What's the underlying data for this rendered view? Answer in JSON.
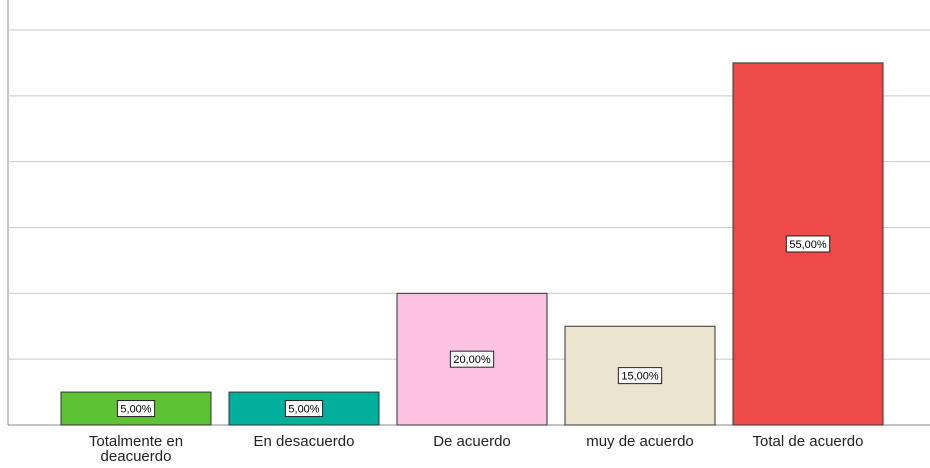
{
  "chart_data": {
    "type": "bar",
    "categories": [
      "Totalmente en deacuerdo",
      "En desacuerdo",
      "De acuerdo",
      "muy de acuerdo",
      "Total de acuerdo"
    ],
    "values": [
      5,
      5,
      20,
      15,
      55
    ],
    "value_labels": [
      "5,00%",
      "5,00%",
      "20,00%",
      "15,00%",
      "55,00%"
    ],
    "colors": [
      "#5ec235",
      "#00af9c",
      "#fdc1e1",
      "#ebe4cf",
      "#ee4a4a"
    ],
    "ylim": [
      0,
      60
    ],
    "yticks": [
      0,
      10,
      20,
      30,
      40,
      50,
      60
    ],
    "grid": true
  }
}
